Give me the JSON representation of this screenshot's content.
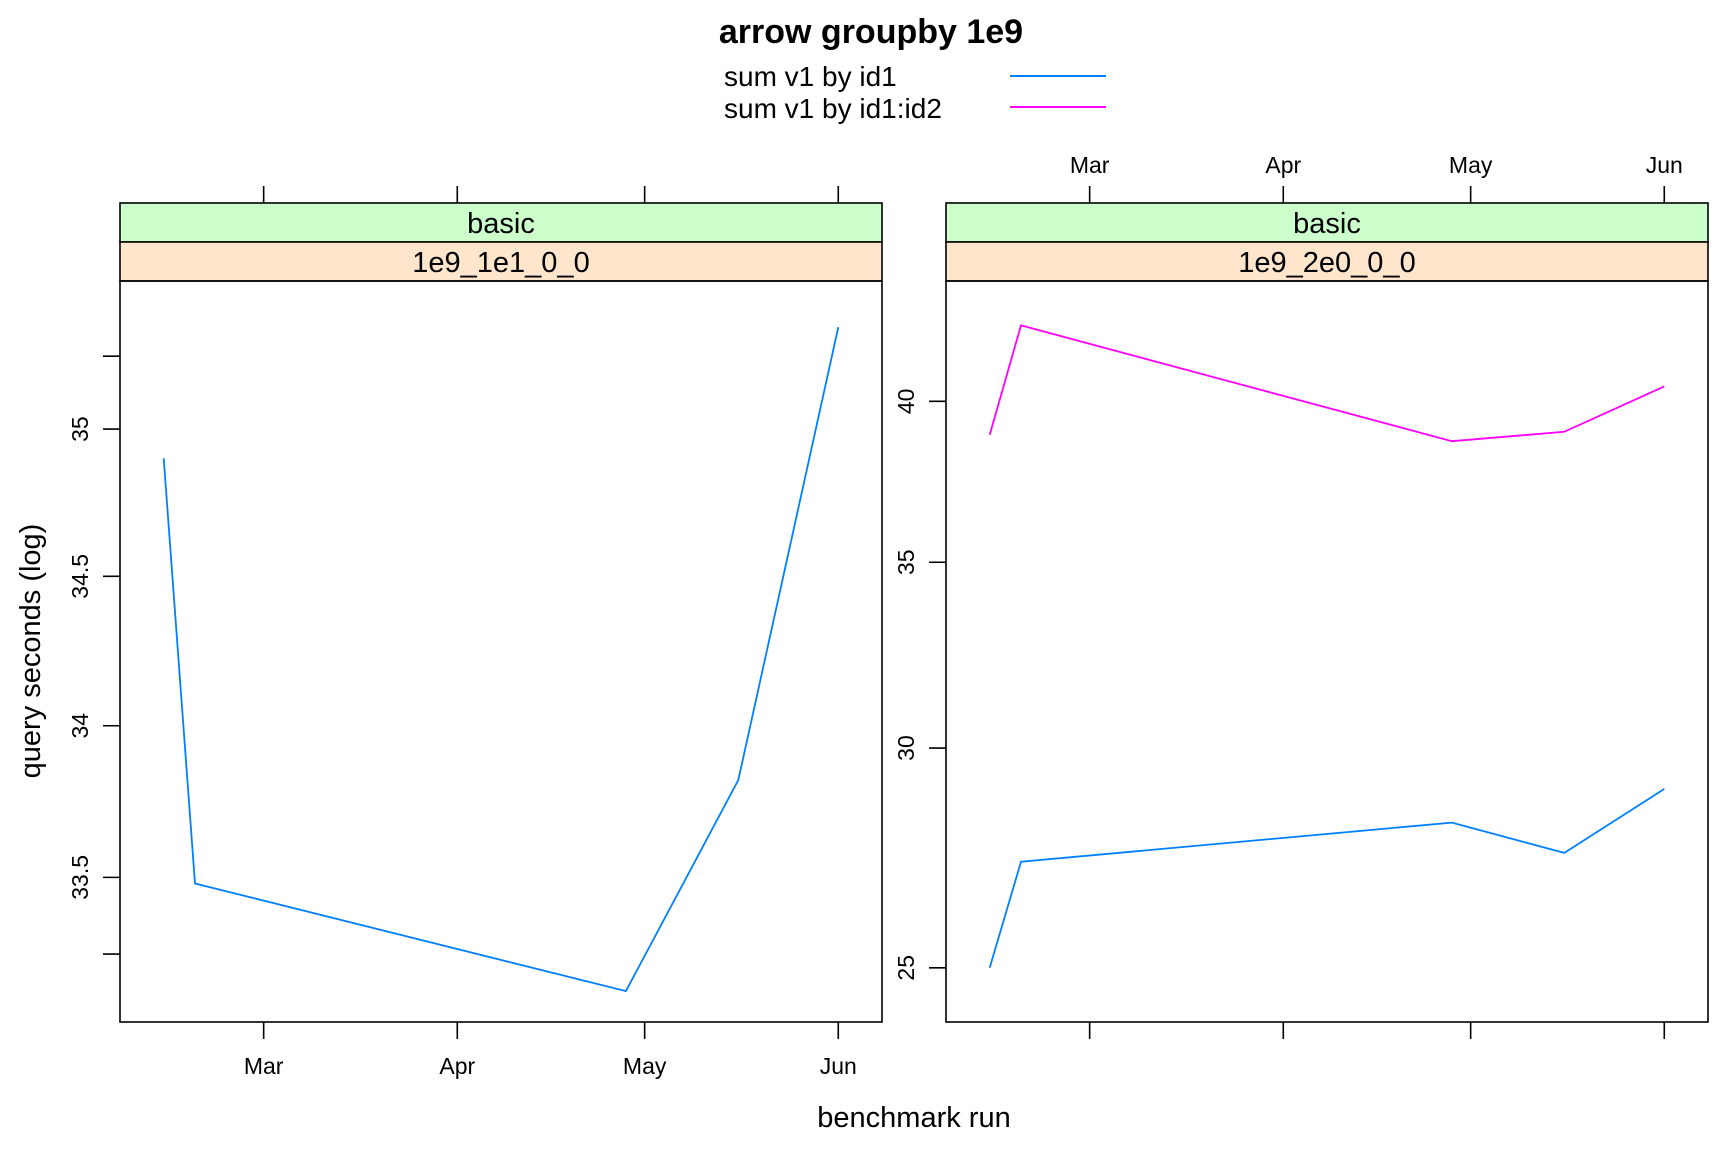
{
  "title": "arrow groupby 1e9",
  "xlabel": "benchmark run",
  "ylabel": "query seconds (log)",
  "colors": {
    "id1": "#0080ff",
    "id1id2": "#ff00ff",
    "strip_top": "#ccffcc",
    "strip_bottom": "#ffe5cc"
  },
  "legend": [
    {
      "label": "sum v1 by id1",
      "color": "#0080ff"
    },
    {
      "label": "sum v1 by id1:id2",
      "color": "#ff00ff"
    }
  ],
  "chart_data": [
    {
      "type": "line",
      "strip_top": "basic",
      "strip_bottom": "1e9_1e1_0_0",
      "y_scale": "log",
      "xticks": [
        {
          "label": "Mar",
          "date": "2021-03-01"
        },
        {
          "label": "Apr",
          "date": "2021-04-01"
        },
        {
          "label": "May",
          "date": "2021-05-01"
        },
        {
          "label": "Jun",
          "date": "2021-06-01"
        }
      ],
      "xlim": [
        "2021-02-06",
        "2021-06-08"
      ],
      "yticks": [
        33.5,
        34,
        34.5,
        35
      ],
      "ylim": [
        33.03,
        35.51
      ],
      "series": [
        {
          "name": "sum v1 by id1",
          "color": "#0080ff",
          "x": [
            "2021-02-13",
            "2021-02-18",
            "2021-04-28",
            "2021-05-16",
            "2021-06-01"
          ],
          "y": [
            34.9,
            33.48,
            33.13,
            33.82,
            35.35
          ]
        }
      ]
    },
    {
      "type": "line",
      "strip_top": "basic",
      "strip_bottom": "1e9_2e0_0_0",
      "y_scale": "log",
      "xticks": [
        {
          "label": "Mar",
          "date": "2021-03-01"
        },
        {
          "label": "Apr",
          "date": "2021-04-01"
        },
        {
          "label": "May",
          "date": "2021-05-01"
        },
        {
          "label": "Jun",
          "date": "2021-06-01"
        }
      ],
      "xlim": [
        "2021-02-06",
        "2021-06-08"
      ],
      "yticks": [
        25,
        30,
        35,
        40
      ],
      "ylim": [
        23.9,
        44.2
      ],
      "series": [
        {
          "name": "sum v1 by id1",
          "color": "#0080ff",
          "x": [
            "2021-02-13",
            "2021-02-18",
            "2021-04-28",
            "2021-05-16",
            "2021-06-01"
          ],
          "y": [
            25.0,
            27.3,
            28.2,
            27.5,
            29.0
          ]
        },
        {
          "name": "sum v1 by id1:id2",
          "color": "#ff00ff",
          "x": [
            "2021-02-13",
            "2021-02-18",
            "2021-04-28",
            "2021-05-16",
            "2021-06-01"
          ],
          "y": [
            38.9,
            42.6,
            38.7,
            39.0,
            40.5
          ]
        }
      ]
    }
  ]
}
